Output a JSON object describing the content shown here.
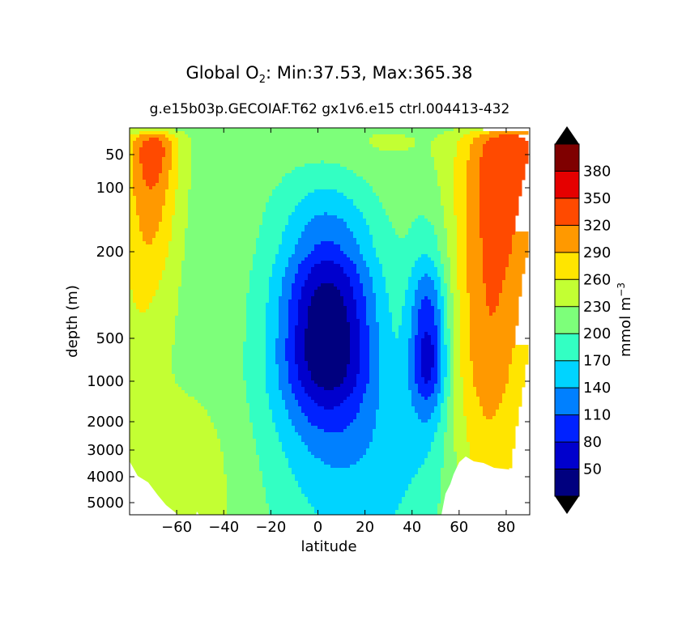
{
  "chart_data": {
    "type": "heatmap",
    "subtype": "filled-contour",
    "title": {
      "prefix": "Global O",
      "subscript": "2",
      "suffix": ": Min:37.53, Max:365.38"
    },
    "subtitle": "g.e15b03p.GECOIAF.T62 gx1v6.e15 ctrl.004413-432",
    "xlabel": "latitude",
    "ylabel": "depth (m)",
    "xlim": [
      -80,
      90
    ],
    "x_ticks": [
      -60,
      -40,
      -20,
      0,
      20,
      40,
      60,
      80
    ],
    "x_tick_labels": [
      "−60",
      "−40",
      "−20",
      "0",
      "20",
      "40",
      "60",
      "80"
    ],
    "y_axis": "depth, inverted (surface at top), nonlinear scale",
    "y_ticks": [
      50,
      100,
      200,
      500,
      1000,
      2000,
      3000,
      4000,
      5000
    ],
    "y_tick_labels": [
      "50",
      "100",
      "200",
      "500",
      "1000",
      "2000",
      "3000",
      "4000",
      "5000"
    ],
    "min": 37.53,
    "max": 365.38,
    "colorbar": {
      "label": "mmol m",
      "label_exponent": "−3",
      "levels": [
        20,
        50,
        80,
        110,
        140,
        170,
        200,
        230,
        260,
        290,
        320,
        350,
        380,
        410
      ],
      "tick_labels": [
        "50",
        "80",
        "110",
        "140",
        "170",
        "200",
        "230",
        "260",
        "290",
        "320",
        "350",
        "380"
      ],
      "extend": "both",
      "colors": [
        "#00007f",
        "#0000cd",
        "#0022ff",
        "#0080ff",
        "#00d4ff",
        "#33ffc3",
        "#7dff7a",
        "#c3ff33",
        "#ffe500",
        "#ff9900",
        "#ff4a00",
        "#e50000",
        "#7f0000"
      ],
      "under_color": "#000000",
      "over_color": "#000000"
    },
    "grid": false,
    "field_description": "Zonal mean O2 concentration vs latitude and depth; equatorial oxygen minimum (<50) at ~300-900 m near 0-10N, secondary minimum near 45-50N; highest values (>320) near surface at high northern latitudes and around 60-70S; white regions are seafloor/no data."
  }
}
